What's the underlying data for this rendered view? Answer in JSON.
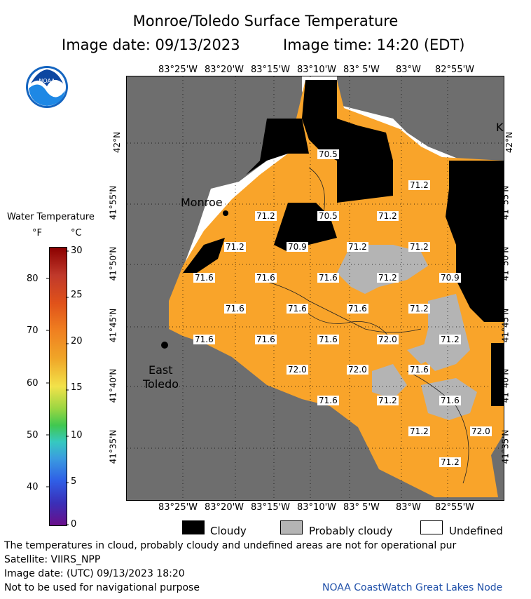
{
  "header": {
    "title": "Monroe/Toledo Surface Temperature",
    "image_date": "Image date: 09/13/2023",
    "image_time": "Image time: 14:20 (EDT)"
  },
  "logo": {
    "text": "NOAA"
  },
  "colorbar": {
    "title": "Water Temperature",
    "unit_f": "°F",
    "unit_c": "°C",
    "f_ticks": [
      "80",
      "70",
      "60",
      "50",
      "40"
    ],
    "c_ticks": [
      "30",
      "25",
      "20",
      "15",
      "10",
      "5",
      "0"
    ]
  },
  "axes": {
    "top_lon": [
      "83°25'W",
      "83°20'W",
      "83°15'W",
      "83°10'W",
      "83° 5'W",
      "83°W",
      "82°55'W"
    ],
    "bottom_lon": [
      "83°25'W",
      "83°20'W",
      "83°15'W",
      "83°10'W",
      "83° 5'W",
      "83°W",
      "82°55'W"
    ],
    "lat": [
      "42°N",
      "41°55'N",
      "41°50'N",
      "41°45'N",
      "41°40'N",
      "41°35'N"
    ]
  },
  "places": {
    "monroe": "Monroe",
    "east": "East",
    "toledo": "Toledo",
    "k": "K"
  },
  "temperatures": [
    {
      "t": "70.5"
    },
    {
      "t": "71.2"
    },
    {
      "t": "71.2"
    },
    {
      "t": "70.5"
    },
    {
      "t": "71.2"
    },
    {
      "t": "71.2"
    },
    {
      "t": "70.9"
    },
    {
      "t": "71.2"
    },
    {
      "t": "71.2"
    },
    {
      "t": "71.6"
    },
    {
      "t": "71.6"
    },
    {
      "t": "71.6"
    },
    {
      "t": "71.2"
    },
    {
      "t": "70.9"
    },
    {
      "t": "71.6"
    },
    {
      "t": "71.6"
    },
    {
      "t": "71.6"
    },
    {
      "t": "71.2"
    },
    {
      "t": "71.6"
    },
    {
      "t": "71.6"
    },
    {
      "t": "71.6"
    },
    {
      "t": "72.0"
    },
    {
      "t": "71.2"
    },
    {
      "t": "72.0"
    },
    {
      "t": "72.0"
    },
    {
      "t": "71.6"
    },
    {
      "t": "71.6"
    },
    {
      "t": "71.2"
    },
    {
      "t": "71.6"
    },
    {
      "t": "71.2"
    },
    {
      "t": "72.0"
    },
    {
      "t": "71.2"
    }
  ],
  "legend": {
    "cloudy": "Cloudy",
    "probably_cloudy": "Probably cloudy",
    "undefined": "Undefined",
    "colors": {
      "cloudy": "#000000",
      "probably_cloudy": "#b4b4b4",
      "undefined": "#ffffff",
      "water": "#f9a42a",
      "land": "#6e6e6e"
    }
  },
  "footer": {
    "line1": "The temperatures in cloud, probably cloudy and undefined areas are not for operational pur",
    "line2": "Satellite: VIIRS_NPP",
    "line3": "Image date: (UTC) 09/13/2023  18:20",
    "line4": "Not to be used for navigational purpose",
    "credit": "NOAA CoastWatch Great Lakes Node"
  }
}
